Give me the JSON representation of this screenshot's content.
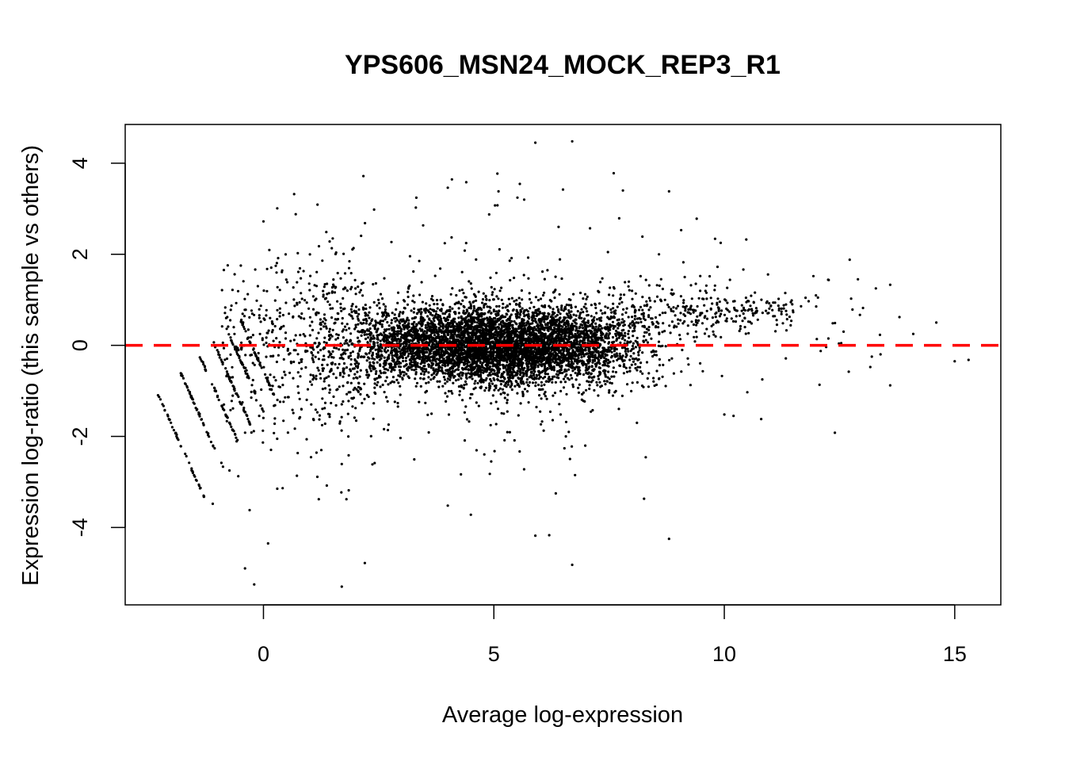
{
  "chart_data": {
    "type": "scatter",
    "title": "YPS606_MSN24_MOCK_REP3_R1",
    "xlabel": "Average log-expression",
    "ylabel": "Expression log-ratio (this sample vs others)",
    "xlim": [
      -3.0,
      16.0
    ],
    "ylim": [
      -5.7,
      4.85
    ],
    "xticks": [
      0,
      5,
      10,
      15
    ],
    "yticks": [
      -4,
      -2,
      0,
      2,
      4
    ],
    "grid": false,
    "legend": "none",
    "point_color": "#000000",
    "reference_line": {
      "y": 0,
      "color": "#ff0000",
      "style": "dashed"
    },
    "outliers": [
      {
        "x": 5.9,
        "y": 4.45
      },
      {
        "x": 6.7,
        "y": 4.48
      },
      {
        "x": 7.6,
        "y": 3.78
      },
      {
        "x": 4.4,
        "y": 3.58
      },
      {
        "x": 4.0,
        "y": 3.46
      },
      {
        "x": 6.5,
        "y": 3.42
      },
      {
        "x": 8.8,
        "y": 3.38
      },
      {
        "x": 5.1,
        "y": 3.38
      },
      {
        "x": 7.8,
        "y": 3.4
      },
      {
        "x": 0.0,
        "y": 2.72
      },
      {
        "x": 0.7,
        "y": 2.88
      },
      {
        "x": 2.4,
        "y": 2.98
      },
      {
        "x": 9.4,
        "y": 2.78
      },
      {
        "x": 9.8,
        "y": 2.34
      },
      {
        "x": 12.9,
        "y": 1.45
      },
      {
        "x": 13.6,
        "y": 1.33
      },
      {
        "x": 13.8,
        "y": 0.62
      },
      {
        "x": 14.1,
        "y": 0.25
      },
      {
        "x": 14.6,
        "y": 0.5
      },
      {
        "x": 15.0,
        "y": -0.35
      },
      {
        "x": 15.3,
        "y": -0.32
      },
      {
        "x": 13.6,
        "y": -0.88
      },
      {
        "x": 13.2,
        "y": -0.25
      },
      {
        "x": 12.7,
        "y": -0.58
      },
      {
        "x": 12.4,
        "y": -1.92
      },
      {
        "x": 10.0,
        "y": -1.52
      },
      {
        "x": 10.2,
        "y": -1.55
      },
      {
        "x": 10.8,
        "y": -1.62
      },
      {
        "x": 10.5,
        "y": -1.03
      },
      {
        "x": 8.8,
        "y": -4.25
      },
      {
        "x": 6.7,
        "y": -4.82
      },
      {
        "x": 5.9,
        "y": -4.18
      },
      {
        "x": 6.2,
        "y": -4.17
      },
      {
        "x": 4.5,
        "y": -3.72
      },
      {
        "x": 4.0,
        "y": -3.52
      },
      {
        "x": 2.2,
        "y": -4.78
      },
      {
        "x": 1.7,
        "y": -5.3
      },
      {
        "x": -0.4,
        "y": -4.9
      },
      {
        "x": -0.2,
        "y": -5.25
      },
      {
        "x": 0.1,
        "y": -4.35
      },
      {
        "x": -0.3,
        "y": -3.62
      },
      {
        "x": -1.1,
        "y": -3.48
      },
      {
        "x": 0.3,
        "y": -3.15
      },
      {
        "x": 1.2,
        "y": -3.38
      },
      {
        "x": 1.8,
        "y": -3.38
      }
    ]
  }
}
